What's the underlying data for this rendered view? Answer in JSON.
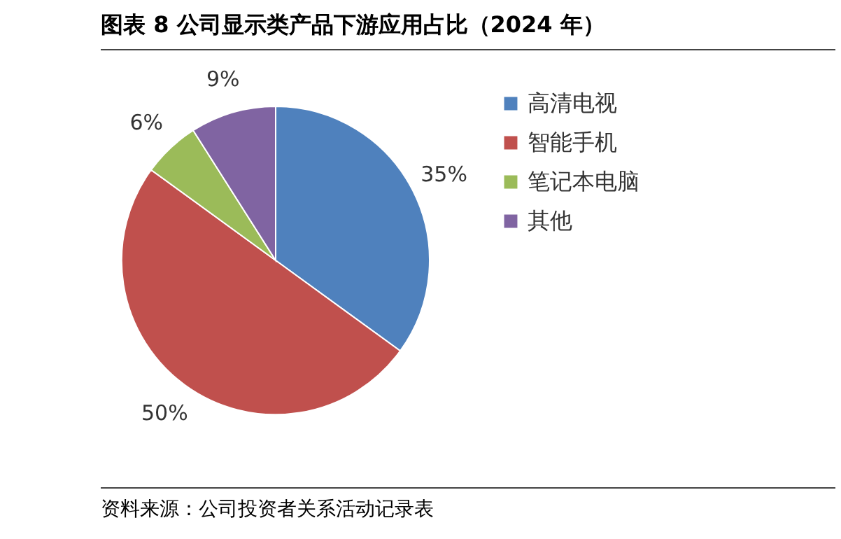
{
  "chart_data": {
    "type": "pie",
    "title": "图表 8 公司显示类产品下游应用占比（2024 年）",
    "categories": [
      "高清电视",
      "智能手机",
      "笔记本电脑",
      "其他"
    ],
    "values": [
      35,
      50,
      6,
      9
    ],
    "colors": [
      "#4f81bd",
      "#c0504d",
      "#9bbb59",
      "#8064a2"
    ],
    "value_labels": [
      "35%",
      "50%",
      "6%",
      "9%"
    ],
    "legend": "right",
    "annotations": [
      "资料来源：公司投资者关系活动记录表"
    ]
  }
}
